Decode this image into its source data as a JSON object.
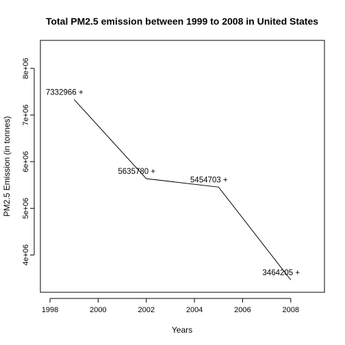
{
  "chart_data": {
    "type": "line",
    "title": "Total PM2.5 emission between 1999 to 2008 in United States",
    "xlabel": "Years",
    "ylabel": "PM2.5 Emission (in tonnes)",
    "x": [
      1999,
      2002,
      2005,
      2008
    ],
    "values": [
      7332966,
      5635780,
      5454703,
      3464205
    ],
    "data_labels": [
      "7332966 +",
      "5635780 +",
      "5454703 +",
      "3464205 +"
    ],
    "xlim": [
      1997.6,
      2009.4
    ],
    "ylim": [
      3200000,
      8600000
    ],
    "x_ticks": [
      1998,
      2000,
      2002,
      2004,
      2006,
      2008
    ],
    "x_tick_labels": [
      "1998",
      "2000",
      "2002",
      "2004",
      "2006",
      "2008"
    ],
    "y_ticks": [
      4000000,
      5000000,
      6000000,
      7000000,
      8000000
    ],
    "y_tick_labels": [
      "4e+06",
      "5e+06",
      "6e+06",
      "7e+06",
      "8e+06"
    ],
    "grid": false,
    "legend": "none"
  }
}
